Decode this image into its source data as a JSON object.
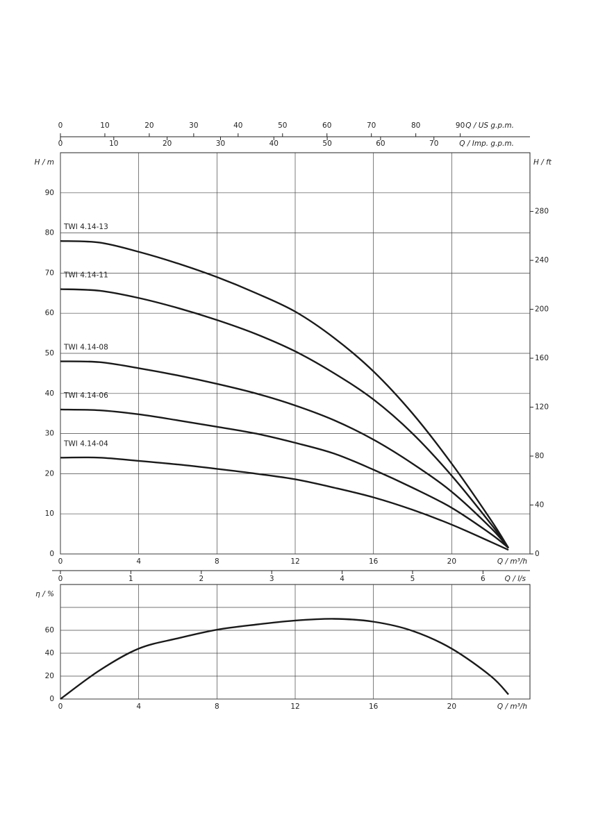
{
  "chart_data": [
    {
      "type": "line",
      "x_label": "Q / m³/h",
      "y_label": "H / m",
      "y2_label": "H / ft",
      "x": [
        0,
        2,
        4,
        6,
        8,
        10,
        12,
        14,
        16,
        18,
        20,
        22,
        22.9
      ],
      "xlim": [
        0,
        24
      ],
      "xticks": [
        0,
        4,
        8,
        12,
        16,
        20
      ],
      "ylim": [
        0,
        100
      ],
      "yticks": [
        0,
        10,
        20,
        30,
        40,
        50,
        60,
        70,
        80,
        90
      ],
      "y2lim": [
        0,
        328
      ],
      "y2ticks": [
        0,
        40,
        80,
        120,
        160,
        200,
        240,
        280
      ],
      "grid": true,
      "extra_x_axes": [
        {
          "label": "Q / US g.p.m.",
          "lim": [
            0,
            105.7
          ],
          "ticks": [
            0,
            10,
            20,
            30,
            40,
            50,
            60,
            70,
            80,
            90
          ]
        },
        {
          "label": "Q / Imp. g.p.m.",
          "lim": [
            0,
            88
          ],
          "ticks": [
            0,
            10,
            20,
            30,
            40,
            50,
            60,
            70
          ]
        },
        {
          "label": "Q / l/s",
          "lim": [
            0,
            6.667
          ],
          "ticks": [
            0,
            1,
            2,
            3,
            4,
            5,
            6
          ]
        }
      ],
      "series": [
        {
          "name": "TWI 4.14-13",
          "color": "#1a1a1a",
          "values": [
            78,
            77.6,
            75.3,
            72.4,
            69,
            65,
            60.4,
            53.8,
            45.5,
            35,
            22.5,
            8.5,
            1.5
          ]
        },
        {
          "name": "TWI 4.14-11",
          "color": "#1a1a1a",
          "values": [
            66,
            65.6,
            63.8,
            61.3,
            58.3,
            54.8,
            50.5,
            45,
            38.5,
            30,
            19.5,
            7.5,
            1.5
          ]
        },
        {
          "name": "TWI 4.14-08",
          "color": "#1a1a1a",
          "values": [
            48,
            47.8,
            46.3,
            44.5,
            42.4,
            40,
            37,
            33.3,
            28.5,
            22.5,
            15.5,
            6.5,
            1.5
          ]
        },
        {
          "name": "TWI 4.14-06",
          "color": "#1a1a1a",
          "values": [
            36,
            35.8,
            34.8,
            33.3,
            31.7,
            30,
            27.7,
            25,
            21,
            16.5,
            11.5,
            5,
            1.5
          ]
        },
        {
          "name": "TWI 4.14-04",
          "color": "#1a1a1a",
          "values": [
            24,
            24,
            23.2,
            22.3,
            21.2,
            20,
            18.6,
            16.5,
            14.1,
            11,
            7.3,
            3,
            1
          ]
        }
      ]
    },
    {
      "type": "line",
      "x_label": "Q / m³/h",
      "y_label": "η / %",
      "x": [
        0,
        2,
        4,
        6,
        8,
        10,
        12,
        14,
        16,
        18,
        20,
        22,
        22.9
      ],
      "xlim": [
        0,
        24
      ],
      "xticks": [
        0,
        4,
        8,
        12,
        16,
        20
      ],
      "ylim": [
        0,
        100
      ],
      "yticks": [
        0,
        20,
        40,
        60,
        {
          "value": 80,
          "label": null
        }
      ],
      "grid": true,
      "series": [
        {
          "color": "#1a1a1a",
          "values": [
            0,
            25,
            44,
            53,
            60.5,
            65,
            68.5,
            70,
            67.5,
            59.5,
            44,
            20,
            4
          ]
        }
      ]
    }
  ]
}
